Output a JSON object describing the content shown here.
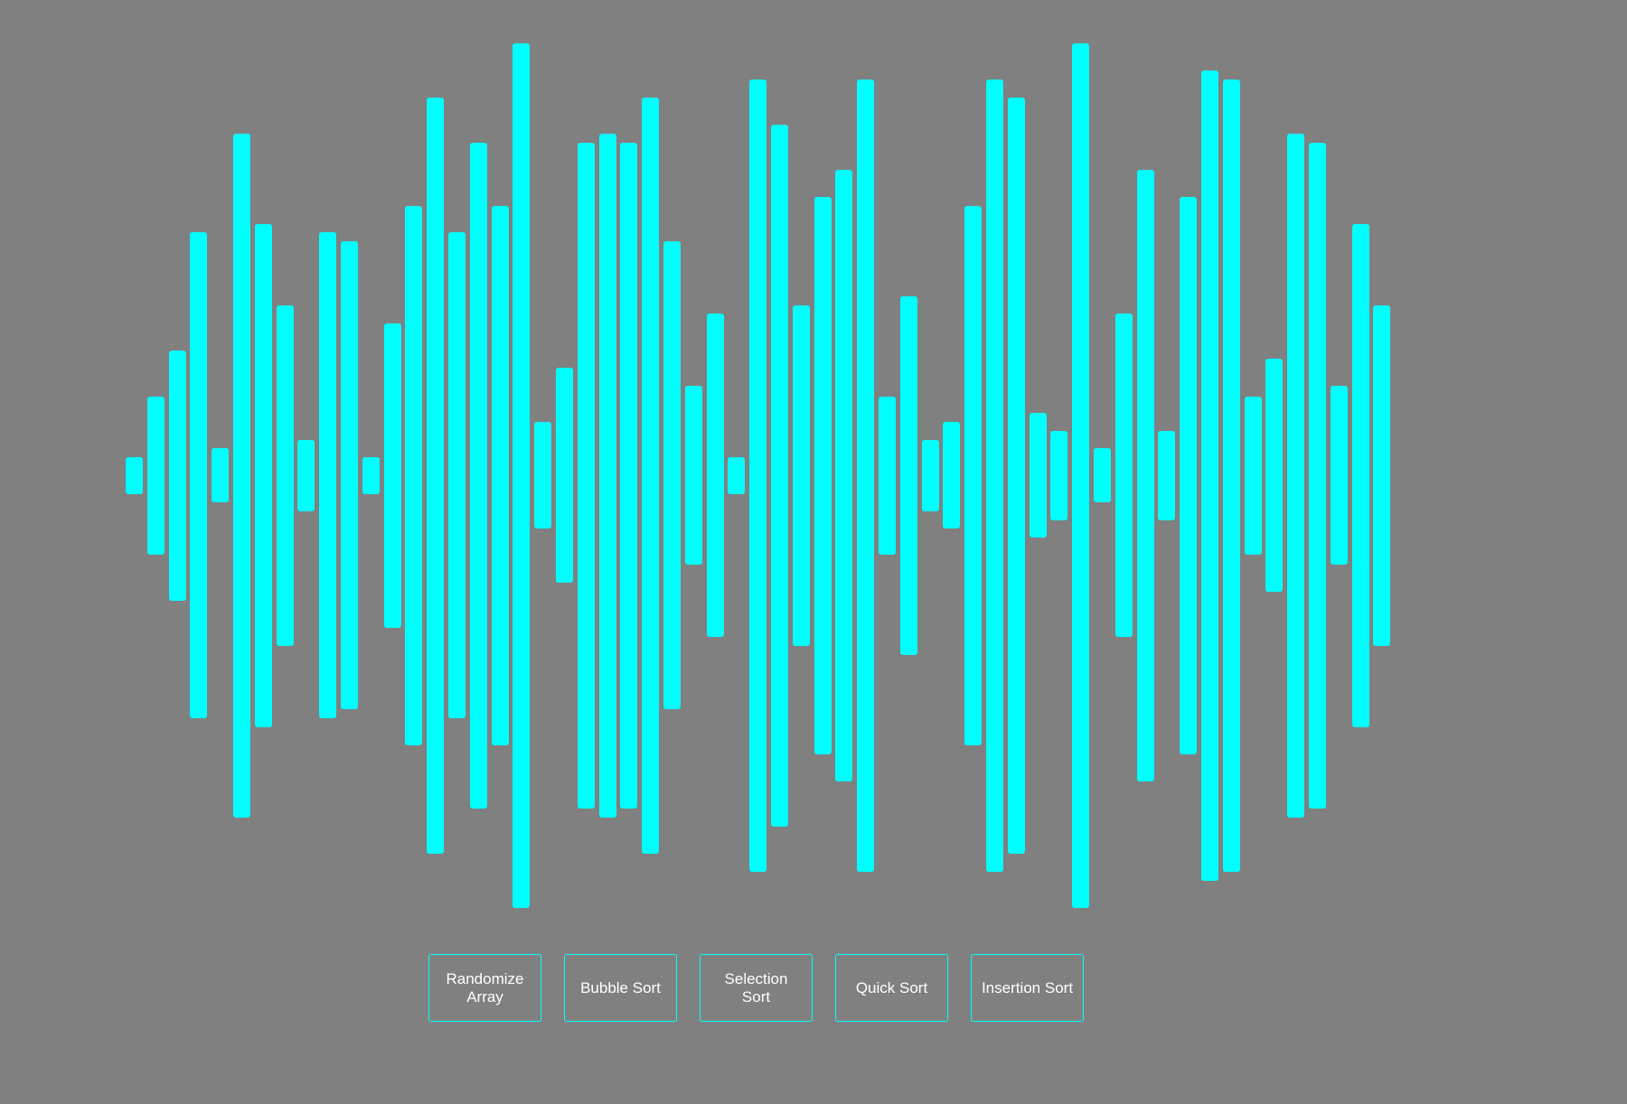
{
  "colors": {
    "background": "#808080",
    "bar": "#00ffff",
    "button_border": "#00ffff",
    "button_text": "#ffffff"
  },
  "array": [
    41,
    175,
    277,
    538,
    60,
    757,
    557,
    377,
    79,
    538,
    518,
    41,
    337,
    597,
    837,
    538,
    737,
    597,
    957,
    118,
    238,
    737,
    757,
    737,
    837,
    518,
    198,
    358,
    41,
    877,
    777,
    377,
    617,
    677,
    877,
    175,
    397,
    79,
    118,
    597,
    877,
    837,
    138,
    99,
    957,
    60,
    358,
    677,
    99,
    617,
    897,
    877,
    175,
    258,
    757,
    737,
    198,
    557,
    377
  ],
  "controls": {
    "buttons": [
      {
        "name": "randomize-array-button",
        "label": "Randomize Array"
      },
      {
        "name": "bubble-sort-button",
        "label": "Bubble Sort"
      },
      {
        "name": "selection-sort-button",
        "label": "Selection Sort"
      },
      {
        "name": "quick-sort-button",
        "label": "Quick Sort"
      },
      {
        "name": "insertion-sort-button",
        "label": "Insertion Sort"
      }
    ]
  }
}
